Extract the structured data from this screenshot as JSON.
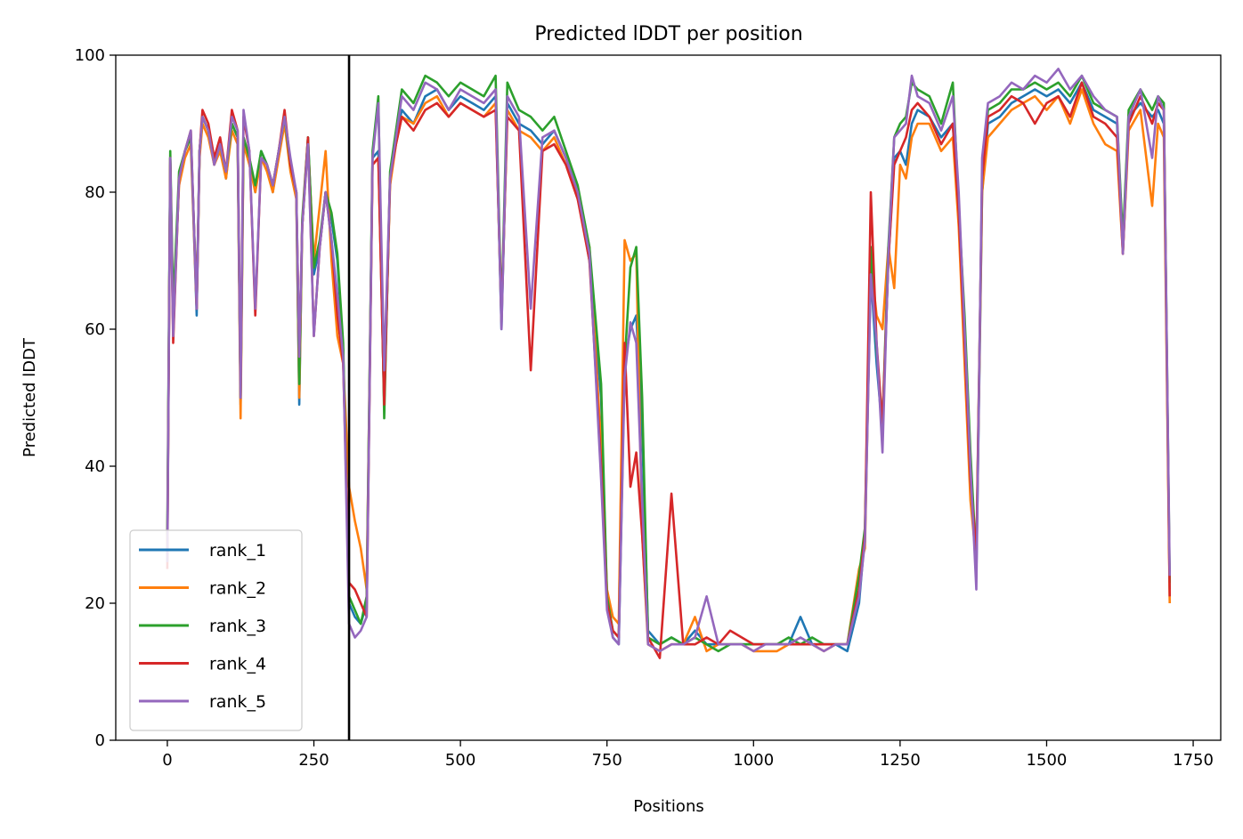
{
  "chart_data": {
    "type": "line",
    "title": "Predicted lDDT per position",
    "xlabel": "Positions",
    "ylabel": "Predicted lDDT",
    "xlim": [
      -88,
      1797
    ],
    "ylim": [
      0,
      100
    ],
    "xticks": [
      0,
      250,
      500,
      750,
      1000,
      1250,
      1500,
      1750
    ],
    "yticks": [
      0,
      20,
      40,
      60,
      80,
      100
    ],
    "xtick_labels": [
      "0",
      "250",
      "500",
      "750",
      "1000",
      "1250",
      "1500",
      "1750"
    ],
    "ytick_labels": [
      "0",
      "20",
      "40",
      "60",
      "80",
      "100"
    ],
    "grid": false,
    "legend_position": "lower-left",
    "vline": {
      "x": 310,
      "color": "#000000"
    },
    "series": [
      {
        "name": "rank_1",
        "color": "#1f77b4",
        "x": [
          0,
          5,
          10,
          20,
          30,
          40,
          50,
          55,
          60,
          70,
          80,
          90,
          100,
          110,
          120,
          125,
          130,
          140,
          150,
          160,
          170,
          180,
          190,
          200,
          210,
          220,
          225,
          230,
          240,
          250,
          260,
          270,
          280,
          290,
          300,
          310,
          320,
          330,
          340,
          350,
          360,
          370,
          380,
          390,
          400,
          420,
          440,
          460,
          480,
          500,
          520,
          540,
          560,
          570,
          580,
          600,
          620,
          640,
          660,
          680,
          700,
          720,
          740,
          750,
          760,
          770,
          780,
          790,
          800,
          810,
          820,
          840,
          860,
          880,
          900,
          920,
          940,
          960,
          980,
          1000,
          1020,
          1040,
          1060,
          1080,
          1100,
          1120,
          1140,
          1160,
          1180,
          1190,
          1200,
          1210,
          1220,
          1230,
          1240,
          1250,
          1260,
          1270,
          1280,
          1300,
          1320,
          1340,
          1350,
          1360,
          1370,
          1380,
          1390,
          1400,
          1420,
          1440,
          1460,
          1480,
          1500,
          1520,
          1540,
          1560,
          1580,
          1600,
          1620,
          1630,
          1640,
          1660,
          1680,
          1690,
          1700,
          1710
        ],
        "y": [
          27,
          85,
          60,
          82,
          86,
          88,
          62,
          86,
          91,
          89,
          84,
          87,
          82,
          90,
          88,
          49,
          88,
          85,
          80,
          86,
          84,
          80,
          86,
          91,
          84,
          80,
          49,
          75,
          88,
          68,
          72,
          80,
          76,
          70,
          57,
          20,
          18,
          17,
          20,
          85,
          86,
          49,
          82,
          88,
          92,
          90,
          94,
          95,
          92,
          94,
          93,
          92,
          94,
          60,
          93,
          90,
          89,
          87,
          89,
          85,
          80,
          70,
          50,
          20,
          15,
          14,
          55,
          60,
          62,
          45,
          16,
          14,
          15,
          14,
          16,
          14,
          14,
          14,
          14,
          14,
          14,
          14,
          14,
          18,
          14,
          14,
          14,
          13,
          20,
          30,
          68,
          55,
          45,
          70,
          85,
          86,
          84,
          90,
          92,
          91,
          88,
          90,
          76,
          60,
          40,
          24,
          80,
          90,
          91,
          93,
          94,
          95,
          94,
          95,
          93,
          96,
          92,
          91,
          90,
          72,
          91,
          93,
          91,
          92,
          90,
          22
        ],
        "labels": []
      },
      {
        "name": "rank_2",
        "color": "#ff7f0e",
        "x": [
          0,
          5,
          10,
          20,
          30,
          40,
          50,
          55,
          60,
          70,
          80,
          90,
          100,
          110,
          120,
          125,
          130,
          140,
          150,
          160,
          170,
          180,
          190,
          200,
          210,
          220,
          225,
          230,
          240,
          250,
          260,
          270,
          280,
          290,
          300,
          310,
          320,
          330,
          340,
          350,
          360,
          370,
          380,
          390,
          400,
          420,
          440,
          460,
          480,
          500,
          520,
          540,
          560,
          570,
          580,
          600,
          620,
          640,
          660,
          680,
          700,
          720,
          740,
          750,
          760,
          770,
          780,
          790,
          800,
          810,
          820,
          840,
          860,
          880,
          900,
          920,
          940,
          960,
          980,
          1000,
          1020,
          1040,
          1060,
          1080,
          1100,
          1120,
          1140,
          1160,
          1180,
          1190,
          1200,
          1210,
          1220,
          1230,
          1240,
          1250,
          1260,
          1270,
          1280,
          1300,
          1320,
          1340,
          1350,
          1360,
          1370,
          1380,
          1390,
          1400,
          1420,
          1440,
          1460,
          1480,
          1500,
          1520,
          1540,
          1560,
          1580,
          1600,
          1620,
          1630,
          1640,
          1660,
          1680,
          1690,
          1700,
          1710
        ],
        "y": [
          28,
          84,
          62,
          81,
          85,
          87,
          63,
          85,
          90,
          88,
          84,
          86,
          82,
          89,
          87,
          47,
          87,
          84,
          80,
          85,
          83,
          80,
          85,
          90,
          83,
          79,
          50,
          75,
          87,
          70,
          78,
          86,
          70,
          59,
          55,
          37,
          32,
          28,
          22,
          84,
          85,
          50,
          81,
          87,
          91,
          90,
          93,
          94,
          91,
          93,
          92,
          91,
          93,
          61,
          92,
          89,
          88,
          86,
          88,
          84,
          79,
          72,
          43,
          22,
          18,
          17,
          73,
          70,
          71,
          30,
          14,
          13,
          14,
          14,
          18,
          13,
          14,
          14,
          14,
          13,
          13,
          13,
          14,
          14,
          14,
          13,
          14,
          14,
          25,
          28,
          70,
          62,
          60,
          72,
          66,
          84,
          82,
          88,
          90,
          90,
          86,
          88,
          75,
          55,
          35,
          26,
          80,
          88,
          90,
          92,
          93,
          94,
          92,
          94,
          90,
          95,
          90,
          87,
          86,
          71,
          89,
          92,
          78,
          90,
          88,
          20
        ],
        "labels": []
      },
      {
        "name": "rank_3",
        "color": "#2ca02c",
        "x": [
          0,
          5,
          10,
          20,
          30,
          40,
          50,
          55,
          60,
          70,
          80,
          90,
          100,
          110,
          120,
          125,
          130,
          140,
          150,
          160,
          170,
          180,
          190,
          200,
          210,
          220,
          225,
          230,
          240,
          250,
          260,
          270,
          280,
          290,
          300,
          310,
          320,
          330,
          340,
          350,
          360,
          370,
          380,
          390,
          400,
          420,
          440,
          460,
          480,
          500,
          520,
          540,
          560,
          570,
          580,
          600,
          620,
          640,
          660,
          680,
          700,
          720,
          740,
          750,
          760,
          770,
          780,
          790,
          800,
          810,
          820,
          840,
          860,
          880,
          900,
          920,
          940,
          960,
          980,
          1000,
          1020,
          1040,
          1060,
          1080,
          1100,
          1120,
          1140,
          1160,
          1180,
          1190,
          1200,
          1210,
          1220,
          1230,
          1240,
          1250,
          1260,
          1270,
          1280,
          1300,
          1320,
          1340,
          1350,
          1360,
          1370,
          1380,
          1390,
          1400,
          1420,
          1440,
          1460,
          1480,
          1500,
          1520,
          1540,
          1560,
          1580,
          1600,
          1620,
          1630,
          1640,
          1660,
          1680,
          1690,
          1700,
          1710
        ],
        "y": [
          30,
          86,
          63,
          83,
          86,
          88,
          64,
          86,
          91,
          89,
          85,
          87,
          83,
          90,
          88,
          50,
          88,
          85,
          81,
          86,
          84,
          81,
          86,
          91,
          84,
          80,
          52,
          76,
          88,
          69,
          73,
          80,
          77,
          71,
          58,
          21,
          19,
          17,
          21,
          86,
          94,
          47,
          83,
          89,
          95,
          93,
          97,
          96,
          94,
          96,
          95,
          94,
          97,
          62,
          96,
          92,
          91,
          89,
          91,
          86,
          81,
          72,
          52,
          21,
          16,
          15,
          55,
          69,
          72,
          50,
          15,
          14,
          15,
          14,
          15,
          14,
          13,
          14,
          14,
          14,
          14,
          14,
          15,
          14,
          15,
          14,
          14,
          14,
          24,
          31,
          72,
          57,
          46,
          72,
          88,
          90,
          91,
          96,
          95,
          94,
          90,
          96,
          78,
          62,
          42,
          26,
          82,
          92,
          93,
          95,
          95,
          96,
          95,
          96,
          94,
          97,
          93,
          92,
          91,
          73,
          92,
          95,
          92,
          94,
          93,
          23
        ],
        "labels": []
      },
      {
        "name": "rank_4",
        "color": "#d62728",
        "x": [
          0,
          5,
          10,
          20,
          30,
          40,
          50,
          55,
          60,
          70,
          80,
          90,
          100,
          110,
          120,
          125,
          130,
          140,
          150,
          160,
          170,
          180,
          190,
          200,
          210,
          220,
          225,
          230,
          240,
          250,
          260,
          270,
          280,
          290,
          300,
          310,
          320,
          330,
          340,
          350,
          360,
          370,
          380,
          390,
          400,
          420,
          440,
          460,
          480,
          500,
          520,
          540,
          560,
          570,
          580,
          600,
          620,
          640,
          660,
          680,
          700,
          720,
          740,
          750,
          760,
          770,
          780,
          790,
          800,
          810,
          820,
          840,
          860,
          880,
          900,
          920,
          940,
          960,
          980,
          1000,
          1020,
          1040,
          1060,
          1080,
          1100,
          1120,
          1140,
          1160,
          1180,
          1190,
          1200,
          1210,
          1220,
          1230,
          1240,
          1250,
          1260,
          1270,
          1280,
          1300,
          1320,
          1340,
          1350,
          1360,
          1370,
          1380,
          1390,
          1400,
          1420,
          1440,
          1460,
          1480,
          1500,
          1520,
          1540,
          1560,
          1580,
          1600,
          1620,
          1630,
          1640,
          1660,
          1680,
          1690,
          1700,
          1710
        ],
        "y": [
          25,
          85,
          58,
          82,
          86,
          89,
          63,
          86,
          92,
          90,
          85,
          88,
          83,
          92,
          89,
          50,
          91,
          86,
          62,
          85,
          84,
          81,
          86,
          92,
          84,
          80,
          56,
          75,
          88,
          59,
          72,
          80,
          73,
          62,
          55,
          23,
          22,
          20,
          18,
          84,
          85,
          49,
          82,
          87,
          91,
          89,
          92,
          93,
          91,
          93,
          92,
          91,
          92,
          62,
          91,
          89,
          54,
          86,
          87,
          84,
          79,
          70,
          40,
          20,
          16,
          15,
          58,
          37,
          42,
          30,
          15,
          12,
          36,
          14,
          14,
          15,
          14,
          16,
          15,
          14,
          14,
          14,
          14,
          14,
          14,
          14,
          14,
          14,
          22,
          30,
          80,
          58,
          46,
          70,
          84,
          86,
          88,
          92,
          93,
          91,
          87,
          90,
          77,
          58,
          38,
          27,
          82,
          91,
          92,
          94,
          93,
          90,
          93,
          94,
          91,
          96,
          91,
          90,
          88,
          71,
          90,
          94,
          90,
          93,
          92,
          21
        ],
        "labels": []
      },
      {
        "name": "rank_5",
        "color": "#9467bd",
        "x": [
          0,
          5,
          10,
          20,
          30,
          40,
          50,
          55,
          60,
          70,
          80,
          90,
          100,
          110,
          120,
          125,
          130,
          140,
          150,
          160,
          170,
          180,
          190,
          200,
          210,
          220,
          225,
          230,
          240,
          250,
          260,
          270,
          280,
          290,
          300,
          310,
          320,
          330,
          340,
          350,
          360,
          370,
          380,
          390,
          400,
          420,
          440,
          460,
          480,
          500,
          520,
          540,
          560,
          570,
          580,
          600,
          620,
          640,
          660,
          680,
          700,
          720,
          740,
          750,
          760,
          770,
          780,
          790,
          800,
          810,
          820,
          840,
          860,
          880,
          900,
          920,
          940,
          960,
          980,
          1000,
          1020,
          1040,
          1060,
          1080,
          1100,
          1120,
          1140,
          1160,
          1180,
          1190,
          1200,
          1210,
          1220,
          1230,
          1240,
          1250,
          1260,
          1270,
          1280,
          1300,
          1320,
          1340,
          1350,
          1360,
          1370,
          1380,
          1390,
          1400,
          1420,
          1440,
          1460,
          1480,
          1500,
          1520,
          1540,
          1560,
          1580,
          1600,
          1620,
          1630,
          1640,
          1660,
          1680,
          1690,
          1700,
          1710
        ],
        "y": [
          26,
          85,
          59,
          82,
          86,
          89,
          63,
          86,
          91,
          89,
          84,
          87,
          83,
          91,
          89,
          50,
          92,
          86,
          63,
          85,
          84,
          81,
          86,
          91,
          85,
          80,
          56,
          75,
          87,
          59,
          72,
          80,
          73,
          65,
          56,
          17,
          15,
          16,
          18,
          85,
          93,
          54,
          82,
          88,
          94,
          92,
          96,
          95,
          92,
          95,
          94,
          93,
          95,
          60,
          94,
          91,
          63,
          88,
          89,
          85,
          80,
          71,
          38,
          19,
          15,
          14,
          53,
          61,
          58,
          35,
          14,
          13,
          14,
          14,
          15,
          21,
          14,
          14,
          14,
          13,
          14,
          14,
          14,
          15,
          14,
          13,
          14,
          14,
          21,
          29,
          68,
          58,
          42,
          71,
          88,
          89,
          90,
          97,
          94,
          93,
          89,
          94,
          80,
          60,
          40,
          22,
          85,
          93,
          94,
          96,
          95,
          97,
          96,
          98,
          95,
          97,
          94,
          92,
          91,
          71,
          91,
          95,
          85,
          94,
          92,
          24
        ],
        "labels": []
      }
    ]
  }
}
